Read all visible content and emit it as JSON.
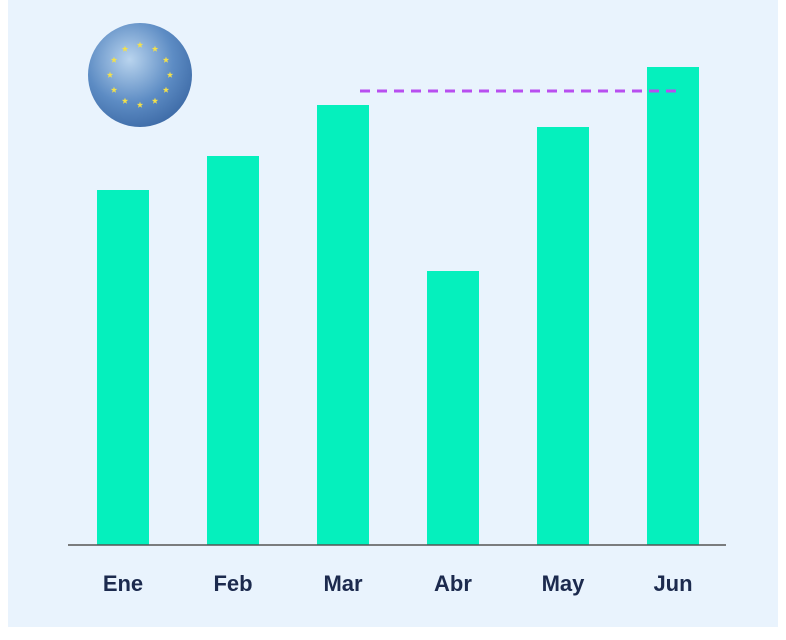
{
  "chart_data": {
    "type": "bar",
    "categories": [
      "Ene",
      "Feb",
      "Mar",
      "Abr",
      "May",
      "Jun"
    ],
    "values": [
      355,
      389,
      440,
      274,
      418,
      478
    ],
    "color": "#05f0bd",
    "ylim": [
      0,
      500
    ],
    "reference_line": {
      "value": 454,
      "color": "#b84ef0"
    }
  }
}
